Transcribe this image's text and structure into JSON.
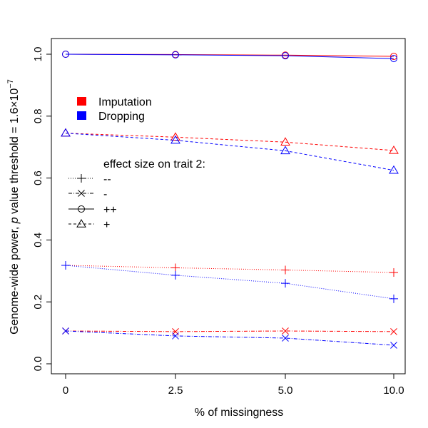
{
  "chart_data": {
    "type": "line",
    "xlabel": "% of missingness",
    "ylabel": {
      "prefix": "Genome-wide power, ",
      "italic": "p",
      "middle": " value threshold = 1.6×10",
      "superscript": "−7"
    },
    "x_categories": [
      "0",
      "2.5",
      "5.0",
      "10.0"
    ],
    "ylim": [
      0,
      1.0
    ],
    "y_ticks": [
      {
        "value": 0.0,
        "label": "0.0"
      },
      {
        "value": 0.2,
        "label": "0.2"
      },
      {
        "value": 0.4,
        "label": "0.4"
      },
      {
        "value": 0.6,
        "label": "0.6"
      },
      {
        "value": 0.8,
        "label": "0.8"
      },
      {
        "value": 1.0,
        "label": "1.0"
      }
    ],
    "methods": [
      {
        "name": "Imputation",
        "color": "#ff0000"
      },
      {
        "name": "Dropping",
        "color": "#0000ff"
      }
    ],
    "effects": [
      {
        "key": "--",
        "label": "--",
        "marker": "plus",
        "dash": "1,2"
      },
      {
        "key": "-",
        "label": "-",
        "marker": "cross",
        "dash": "5,2,1,2"
      },
      {
        "key": "++",
        "label": "++",
        "marker": "circle",
        "dash": ""
      },
      {
        "key": "+",
        "label": "+",
        "marker": "triangle",
        "dash": "4,3"
      }
    ],
    "series": [
      {
        "method": "Imputation",
        "effect": "++",
        "values": [
          1.0,
          0.999,
          0.997,
          0.993
        ]
      },
      {
        "method": "Dropping",
        "effect": "++",
        "values": [
          1.0,
          0.998,
          0.995,
          0.986
        ]
      },
      {
        "method": "Imputation",
        "effect": "+",
        "values": [
          0.745,
          0.732,
          0.716,
          0.689
        ]
      },
      {
        "method": "Dropping",
        "effect": "+",
        "values": [
          0.745,
          0.722,
          0.688,
          0.625
        ]
      },
      {
        "method": "Imputation",
        "effect": "--",
        "values": [
          0.318,
          0.31,
          0.303,
          0.295
        ]
      },
      {
        "method": "Dropping",
        "effect": "--",
        "values": [
          0.318,
          0.286,
          0.26,
          0.21
        ]
      },
      {
        "method": "Imputation",
        "effect": "-",
        "values": [
          0.106,
          0.104,
          0.106,
          0.104
        ]
      },
      {
        "method": "Dropping",
        "effect": "-",
        "values": [
          0.106,
          0.09,
          0.083,
          0.06
        ]
      }
    ],
    "legend_methods_position": "top-left",
    "legend_effects_title": "effect size on trait 2:",
    "legend_effects_position": "middle-left"
  }
}
